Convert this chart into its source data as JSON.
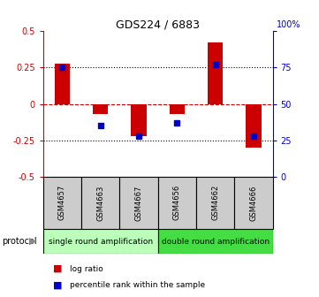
{
  "title": "GDS224 / 6883",
  "samples": [
    "GSM4657",
    "GSM4663",
    "GSM4667",
    "GSM4656",
    "GSM4662",
    "GSM4666"
  ],
  "log_ratio": [
    0.28,
    -0.07,
    -0.22,
    -0.07,
    0.42,
    -0.3
  ],
  "percentile": [
    0.75,
    0.35,
    0.28,
    0.37,
    0.77,
    0.28
  ],
  "ylim": [
    -0.5,
    0.5
  ],
  "yticks_left": [
    -0.5,
    -0.25,
    0,
    0.25,
    0.5
  ],
  "yticks_right": [
    0,
    25,
    50,
    75,
    100
  ],
  "bar_color": "#cc0000",
  "dot_color": "#0000cc",
  "hline_color": "#cc0000",
  "grid_color": "#000000",
  "sample_box_color": "#cccccc",
  "groups": [
    {
      "label": "single round amplification",
      "n_samples": 3,
      "color": "#bbffbb"
    },
    {
      "label": "double round amplification",
      "n_samples": 3,
      "color": "#44dd44"
    }
  ],
  "legend_items": [
    {
      "label": "log ratio",
      "color": "#cc0000"
    },
    {
      "label": "percentile rank within the sample",
      "color": "#0000cc"
    }
  ],
  "label_color_left": "#cc0000",
  "label_color_right": "#0000cc"
}
